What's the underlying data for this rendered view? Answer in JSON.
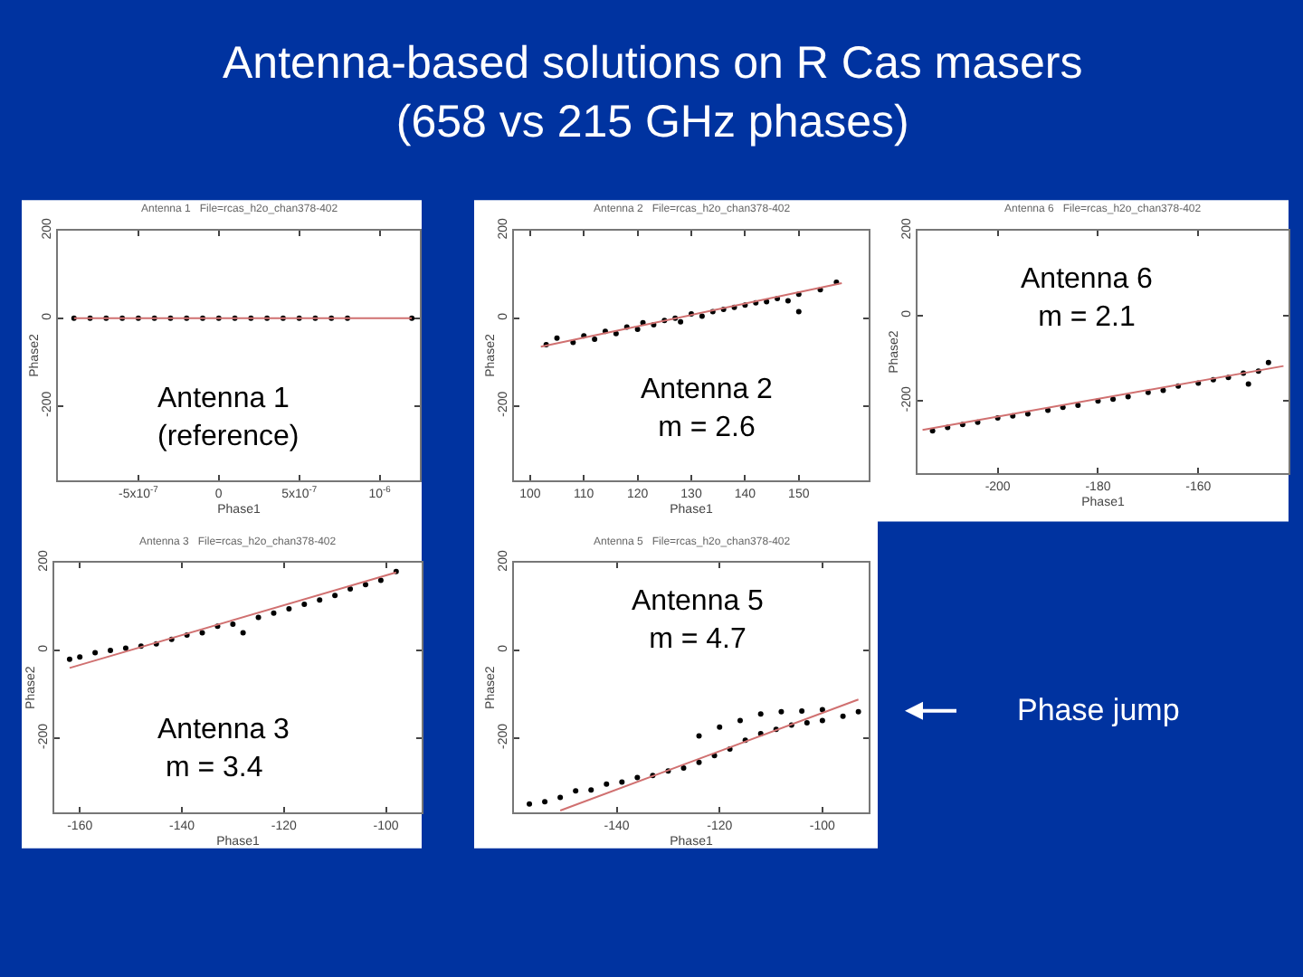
{
  "chart_data": [
    {
      "type": "scatter",
      "title": "Antenna 1   File=rcas_h2o_chan378-402",
      "xlabel": "Phase1",
      "ylabel": "Phase2",
      "annotations": [
        "Antenna-based solutions on R Cas masers\n(658 vs 215 GHz phases)",
        "Antenna 1\n(reference)"
      ],
      "xlim": [
        -1e-06,
        1.25e-06
      ],
      "xticks": [
        {
          "value": -5e-07,
          "label": "-5x10$^{-7}$"
        },
        0,
        {
          "value": 5e-07,
          "label": "5x10$^{-7}$"
        },
        {
          "value": 1e-06,
          "label": "10$^{-6}$"
        }
      ],
      "ylim": [
        -370,
        200
      ],
      "yticks": [
        -200,
        0,
        200
      ],
      "series": [
        {
          "marker": "circle",
          "color": "#000000",
          "x": [
            -9e-07,
            -8e-07,
            -7e-07,
            -6e-07,
            -5e-07,
            -4e-07,
            -3e-07,
            -2e-07,
            -1e-07,
            0,
            1e-07,
            2e-07,
            3e-07,
            4e-07,
            5e-07,
            6e-07,
            7e-07,
            8e-07,
            1.2e-06
          ],
          "values": [
            0,
            0,
            0,
            0,
            0,
            0,
            0,
            0,
            0,
            0,
            0,
            0,
            0,
            0,
            0,
            0,
            0,
            0,
            0
          ]
        },
        {
          "type": "line",
          "color": "#d07070",
          "x": [
            -9e-07,
            1.2e-06
          ],
          "values": [
            0,
            0
          ]
        }
      ]
    },
    {
      "type": "scatter",
      "title": "Antenna 2   File=rcas_h2o_chan378-402",
      "xlabel": "Phase1",
      "ylabel": "Phase2",
      "annotations": [
        "Antenna 2\nm = 2.6"
      ],
      "xlim": [
        97,
        163
      ],
      "xticks": [
        100,
        110,
        120,
        130,
        140,
        150
      ],
      "ylim": [
        -370,
        200
      ],
      "yticks": [
        -200,
        0,
        200
      ],
      "series": [
        {
          "marker": "circle",
          "color": "#000000",
          "x": [
            103,
            105,
            108,
            110,
            112,
            114,
            116,
            118,
            120,
            121,
            123,
            125,
            127,
            128,
            130,
            132,
            134,
            136,
            138,
            140,
            142,
            144,
            146,
            148,
            150,
            150,
            154,
            157
          ],
          "values": [
            -60,
            -45,
            -55,
            -40,
            -48,
            -30,
            -35,
            -20,
            -25,
            -10,
            -15,
            -5,
            0,
            -8,
            10,
            5,
            15,
            20,
            25,
            30,
            35,
            38,
            45,
            40,
            55,
            15,
            65,
            82
          ]
        },
        {
          "type": "line",
          "color": "#d07070",
          "x": [
            102,
            158
          ],
          "values": [
            -65,
            80
          ]
        }
      ]
    },
    {
      "type": "scatter",
      "title": "Antenna 6   File=rcas_h2o_chan378-402",
      "xlabel": "Phase1",
      "ylabel": "Phase2",
      "annotations": [
        "Antenna 6\nm = 2.1"
      ],
      "xlim": [
        -216,
        -142
      ],
      "xticks": [
        -200,
        -180,
        -160
      ],
      "ylim": [
        -370,
        200
      ],
      "yticks": [
        -200,
        0,
        200
      ],
      "series": [
        {
          "marker": "circle",
          "color": "#000000",
          "x": [
            -213,
            -210,
            -207,
            -204,
            -200,
            -197,
            -194,
            -190,
            -187,
            -184,
            -180,
            -177,
            -174,
            -170,
            -167,
            -164,
            -160,
            -157,
            -154,
            -151,
            -148,
            -146,
            -150
          ],
          "values": [
            -270,
            -262,
            -255,
            -250,
            -240,
            -235,
            -230,
            -222,
            -215,
            -210,
            -200,
            -196,
            -190,
            -180,
            -175,
            -165,
            -158,
            -150,
            -145,
            -135,
            -130,
            -110,
            -160
          ]
        },
        {
          "type": "line",
          "color": "#d07070",
          "x": [
            -215,
            -143
          ],
          "values": [
            -268,
            -118
          ]
        }
      ]
    },
    {
      "type": "scatter",
      "title": "Antenna 3   File=rcas_h2o_chan378-402",
      "xlabel": "Phase1",
      "ylabel": "Phase2",
      "annotations": [
        "Antenna 3\n m = 3.4"
      ],
      "xlim": [
        -165,
        -93
      ],
      "xticks": [
        -160,
        -140,
        -120,
        -100
      ],
      "ylim": [
        -370,
        200
      ],
      "yticks": [
        -200,
        0,
        200
      ],
      "series": [
        {
          "marker": "circle",
          "color": "#000000",
          "x": [
            -162,
            -160,
            -157,
            -154,
            -151,
            -148,
            -145,
            -142,
            -139,
            -136,
            -133,
            -130,
            -128,
            -125,
            -122,
            -119,
            -116,
            -113,
            -110,
            -107,
            -104,
            -101,
            -98
          ],
          "values": [
            -20,
            -15,
            -5,
            0,
            5,
            10,
            15,
            25,
            35,
            40,
            55,
            60,
            40,
            75,
            85,
            95,
            105,
            115,
            125,
            140,
            150,
            160,
            180
          ]
        },
        {
          "type": "line",
          "color": "#d07070",
          "x": [
            -162,
            -98
          ],
          "values": [
            -40,
            178
          ]
        }
      ]
    },
    {
      "type": "scatter",
      "title": "Antenna 5   File=rcas_h2o_chan378-402",
      "xlabel": "Phase1",
      "ylabel": "Phase2",
      "annotations": [
        "Antenna 5\nm = 4.7",
        "Phase jump"
      ],
      "xlim": [
        -160,
        -91
      ],
      "xticks": [
        -140,
        -120,
        -100
      ],
      "ylim": [
        -370,
        200
      ],
      "yticks": [
        -200,
        0,
        200
      ],
      "series": [
        {
          "marker": "circle",
          "color": "#000000",
          "x": [
            -157,
            -154,
            -151,
            -148,
            -145,
            -142,
            -139,
            -136,
            -133,
            -130,
            -127,
            -124,
            -121,
            -118,
            -115,
            -112,
            -109,
            -106,
            -103,
            -100,
            -96,
            -93,
            -120,
            -116,
            -112,
            -108,
            -104,
            -100,
            -124
          ],
          "values": [
            -350,
            -345,
            -335,
            -320,
            -318,
            -305,
            -300,
            -290,
            -285,
            -275,
            -268,
            -255,
            -240,
            -225,
            -205,
            -190,
            -180,
            -170,
            -165,
            -160,
            -150,
            -140,
            -175,
            -160,
            -145,
            -140,
            -138,
            -135,
            -195
          ]
        },
        {
          "type": "line",
          "color": "#d07070",
          "x": [
            -151,
            -93
          ],
          "values": [
            -365,
            -112
          ]
        }
      ]
    }
  ]
}
